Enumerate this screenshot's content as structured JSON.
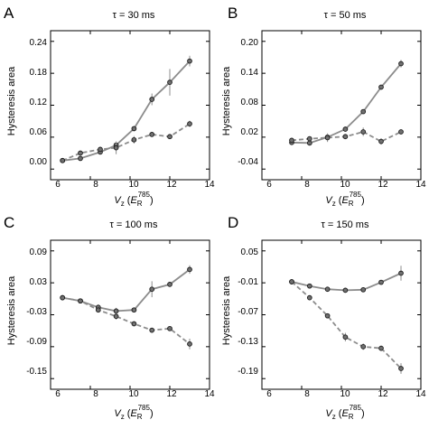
{
  "chart_data": [
    {
      "type": "line",
      "panel_label": "A",
      "title": "τ = 30 ms",
      "ylabel": "Hysteresis area",
      "xlabel": "V_z (E_R^785)",
      "xlim": [
        6,
        14
      ],
      "xticks": [
        "6",
        "8",
        "10",
        "12",
        "14"
      ],
      "ylim": [
        -0.02,
        0.26
      ],
      "yticks": [
        "0.00",
        "0.06",
        "0.12",
        "0.18",
        "0.24"
      ],
      "series": [
        {
          "style": "solid",
          "x": [
            6.6,
            7.5,
            8.5,
            9.3,
            10.2,
            11.1,
            12.0,
            13.0
          ],
          "y": [
            0.016,
            0.02,
            0.032,
            0.045,
            0.076,
            0.131,
            0.163,
            0.203
          ],
          "err": [
            0.002,
            0.003,
            0.004,
            0.004,
            0.005,
            0.011,
            0.025,
            0.01
          ]
        },
        {
          "style": "dashed",
          "x": [
            6.6,
            7.5,
            8.5,
            9.3,
            10.2,
            11.1,
            12.0,
            13.0
          ],
          "y": [
            0.016,
            0.03,
            0.037,
            0.04,
            0.055,
            0.065,
            0.061,
            0.085
          ],
          "err": [
            0.002,
            0.003,
            0.004,
            0.012,
            0.007,
            0.004,
            0.003,
            0.006
          ]
        }
      ]
    },
    {
      "type": "line",
      "panel_label": "B",
      "title": "τ = 50 ms",
      "ylabel": "Hysteresis area",
      "xlabel": "V_z (E_R^785)",
      "xlim": [
        6,
        14
      ],
      "xticks": [
        "6",
        "8",
        "10",
        "12",
        "14"
      ],
      "ylim": [
        -0.06,
        0.22
      ],
      "yticks": [
        "-0.04",
        "0.02",
        "0.08",
        "0.14",
        "0.20"
      ],
      "series": [
        {
          "style": "solid",
          "x": [
            7.5,
            8.4,
            9.3,
            10.2,
            11.1,
            12.0,
            13.0
          ],
          "y": [
            0.01,
            0.009,
            0.02,
            0.035,
            0.068,
            0.114,
            0.158
          ],
          "err": [
            0.003,
            0.003,
            0.006,
            0.004,
            0.004,
            0.004,
            0.007
          ]
        },
        {
          "style": "dashed",
          "x": [
            7.5,
            8.4,
            9.3,
            10.2,
            11.1,
            12.0,
            13.0
          ],
          "y": [
            0.014,
            0.017,
            0.019,
            0.021,
            0.03,
            0.012,
            0.03
          ],
          "err": [
            0.003,
            0.003,
            0.008,
            0.004,
            0.008,
            0.006,
            0.004
          ]
        }
      ]
    },
    {
      "type": "line",
      "panel_label": "C",
      "title": "τ = 100 ms",
      "ylabel": "Hysteresis area",
      "xlabel": "V_z (E_R^785)",
      "xlim": [
        6,
        14
      ],
      "xticks": [
        "6",
        "8",
        "10",
        "12",
        "14"
      ],
      "ylim": [
        -0.17,
        0.11
      ],
      "yticks": [
        "-0.15",
        "-0.09",
        "-0.03",
        "0.03",
        "0.09"
      ],
      "series": [
        {
          "style": "solid",
          "x": [
            6.6,
            7.5,
            8.4,
            9.3,
            10.2,
            11.1,
            12.0,
            13.0
          ],
          "y": [
            0.002,
            -0.004,
            -0.016,
            -0.023,
            -0.021,
            0.018,
            0.027,
            0.055
          ],
          "err": [
            0.002,
            0.003,
            0.005,
            0.006,
            0.004,
            0.015,
            0.004,
            0.008
          ]
        },
        {
          "style": "dashed",
          "x": [
            6.6,
            7.5,
            8.4,
            9.3,
            10.2,
            11.1,
            12.0,
            13.0
          ],
          "y": [
            0.002,
            -0.004,
            -0.021,
            -0.033,
            -0.047,
            -0.059,
            -0.056,
            -0.085
          ],
          "err": [
            0.002,
            0.003,
            0.005,
            0.006,
            0.004,
            0.004,
            0.004,
            0.01
          ]
        }
      ]
    },
    {
      "type": "line",
      "panel_label": "D",
      "title": "τ = 150 ms",
      "ylabel": "Hysteresis area",
      "xlabel": "V_z (E_R^785)",
      "xlim": [
        6,
        14
      ],
      "xticks": [
        "6",
        "8",
        "10",
        "12",
        "14"
      ],
      "ylim": [
        -0.21,
        0.07
      ],
      "yticks": [
        "-0.19",
        "-0.13",
        "-0.07",
        "-0.01",
        "0.05"
      ],
      "series": [
        {
          "style": "solid",
          "x": [
            7.5,
            8.4,
            9.3,
            10.2,
            11.1,
            12.0,
            13.0
          ],
          "y": [
            -0.008,
            -0.016,
            -0.022,
            -0.024,
            -0.023,
            -0.009,
            0.008
          ],
          "err": [
            0.002,
            0.003,
            0.004,
            0.003,
            0.004,
            0.004,
            0.014
          ]
        },
        {
          "style": "dashed",
          "x": [
            7.5,
            8.4,
            9.3,
            10.2,
            11.1,
            12.0,
            13.0
          ],
          "y": [
            -0.008,
            -0.038,
            -0.072,
            -0.112,
            -0.13,
            -0.133,
            -0.171
          ],
          "err": [
            0.002,
            0.004,
            0.004,
            0.008,
            0.006,
            0.005,
            0.01
          ]
        }
      ]
    }
  ]
}
